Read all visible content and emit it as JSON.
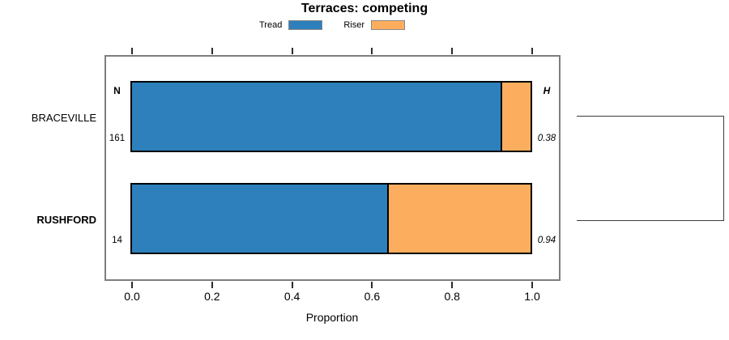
{
  "title": "Terraces: competing",
  "axis": {
    "xlabel": "Proportion",
    "tick_labels": [
      "0.0",
      "0.2",
      "0.4",
      "0.6",
      "0.8",
      "1.0"
    ]
  },
  "headers": {
    "n": "N",
    "h": "H"
  },
  "legend": {
    "items": [
      {
        "label": "Tread",
        "color": "#2E80BC"
      },
      {
        "label": "Riser",
        "color": "#FCAE5E"
      }
    ]
  },
  "chart_data": {
    "type": "bar",
    "orientation": "horizontal_stacked",
    "title": "Terraces: competing",
    "xlabel": "Proportion",
    "xlim": [
      0.0,
      1.0
    ],
    "x_ticks": [
      0.0,
      0.2,
      0.4,
      0.6,
      0.8,
      1.0
    ],
    "legend_position": "top",
    "categories": [
      "BRACEVILLE",
      "RUSHFORD"
    ],
    "series": [
      {
        "name": "Tread",
        "color": "#2E80BC",
        "values": [
          0.925,
          0.64
        ]
      },
      {
        "name": "Riser",
        "color": "#FCAE5E",
        "values": [
          0.075,
          0.36
        ]
      }
    ],
    "rows": [
      {
        "label": "BRACEVILLE",
        "n": "161",
        "h": "0.38",
        "tread": 0.925,
        "riser": 0.075
      },
      {
        "label": "RUSHFORD",
        "n": "14",
        "h": "0.94",
        "tread": 0.64,
        "riser": 0.36
      }
    ],
    "annotations": "right-side dendrogram bracket joining the two category rows"
  }
}
